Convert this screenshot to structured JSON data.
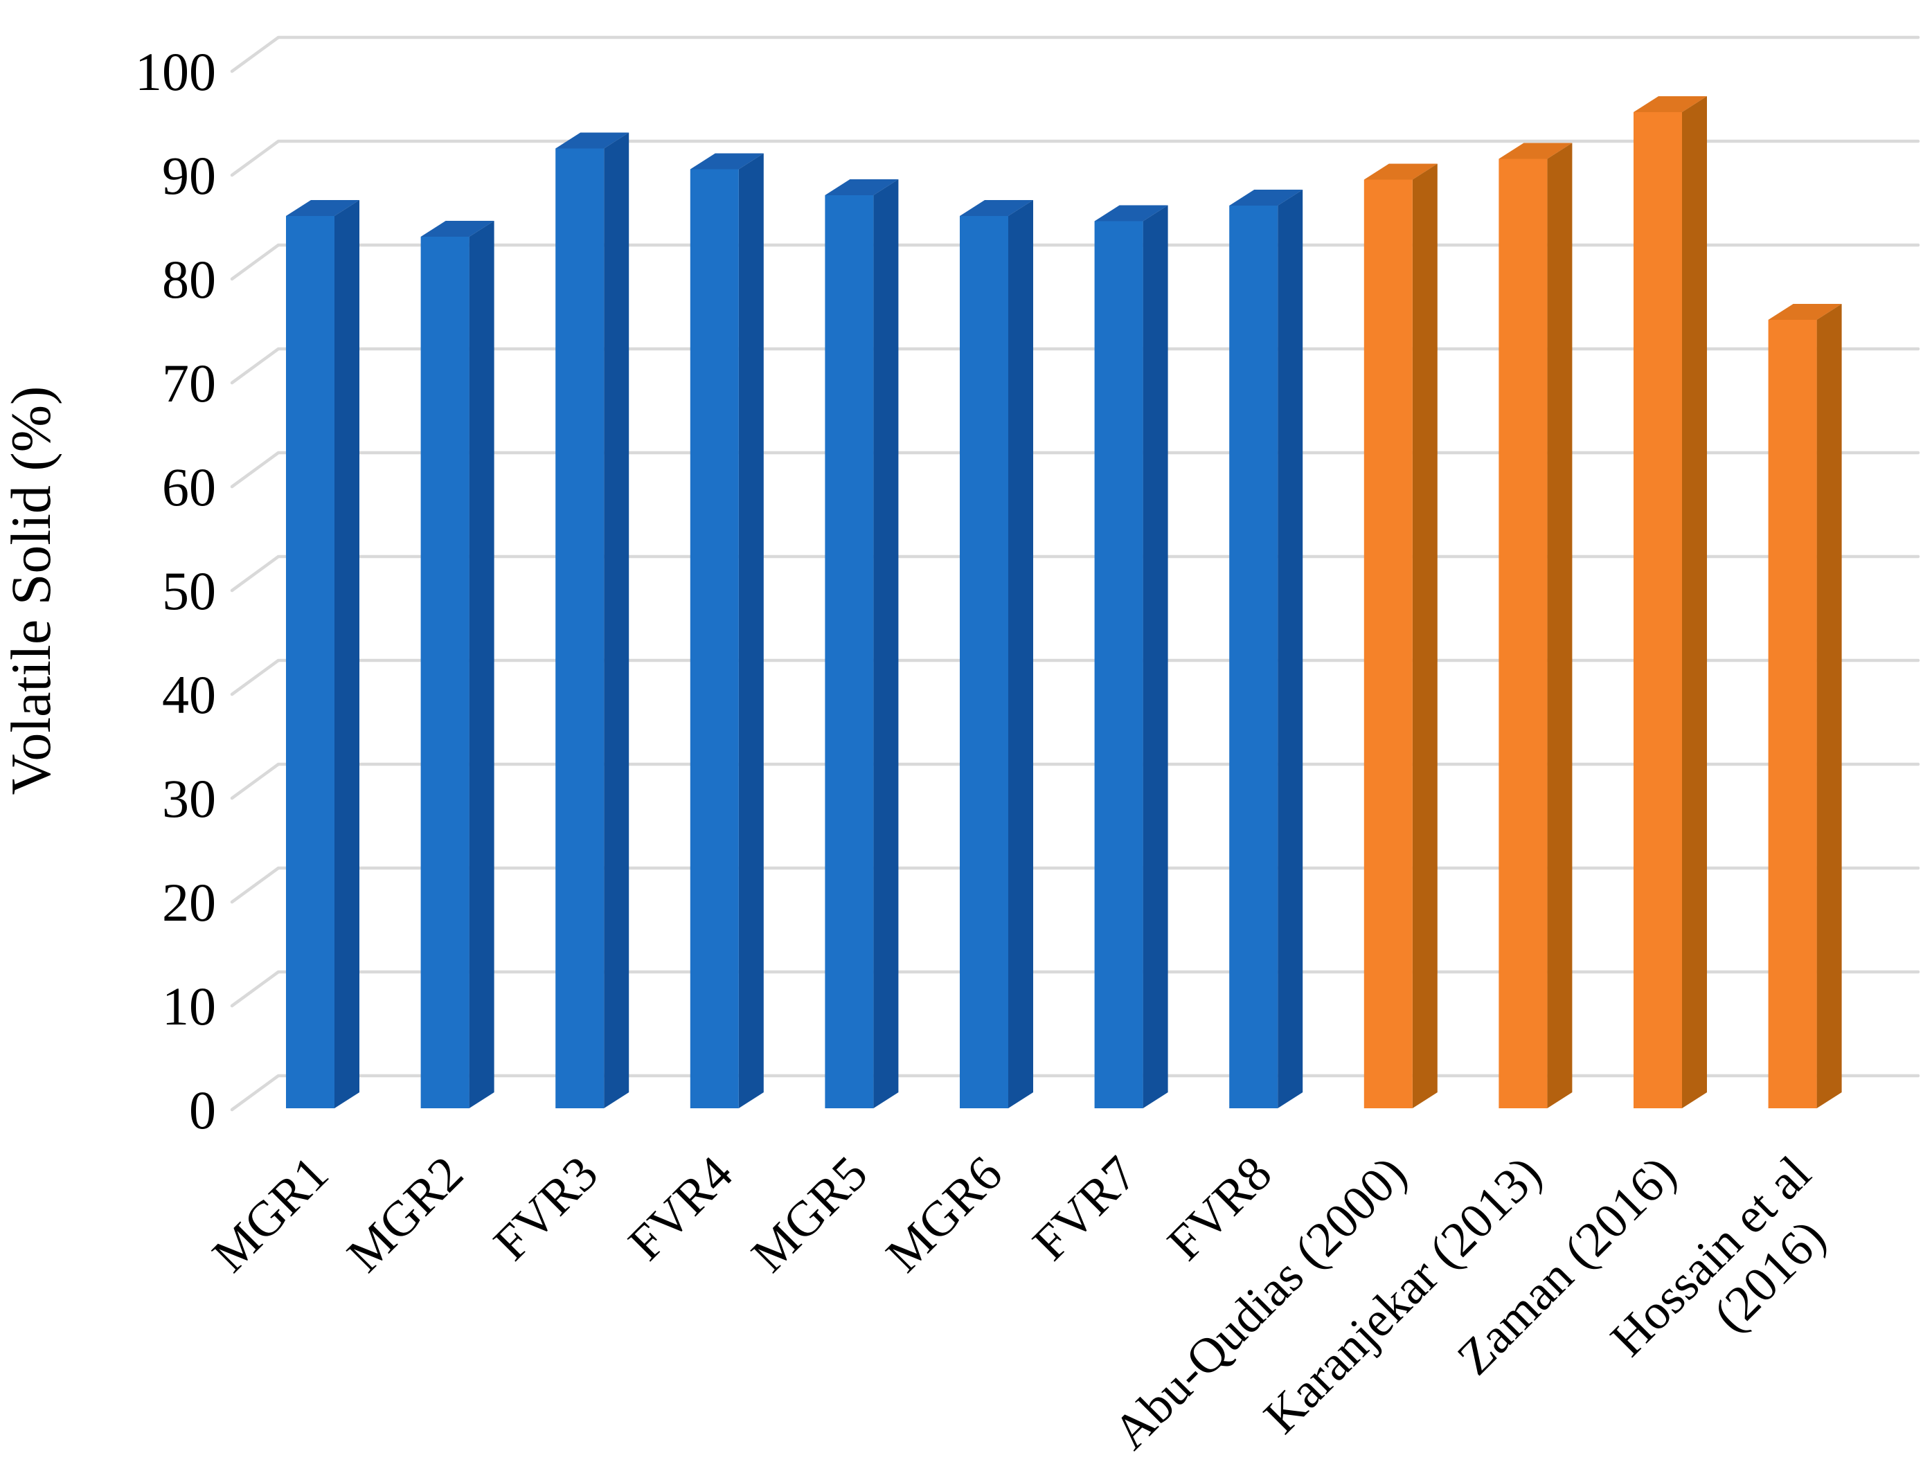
{
  "chart_data": {
    "type": "bar",
    "style": "3d-column",
    "title": "",
    "xlabel": "",
    "ylabel": "Volatile Solid (%)",
    "ylim": [
      0,
      100
    ],
    "ytick_step": 10,
    "yticks": [
      "0",
      "10",
      "20",
      "30",
      "40",
      "50",
      "60",
      "70",
      "80",
      "90",
      "100"
    ],
    "grid": "horizontal",
    "legend": "none",
    "categories": [
      "MGR1",
      "MGR2",
      "FVR3",
      "FVR4",
      "MGR5",
      "MGR6",
      "FVR7",
      "FVR8",
      "Abu-Qudias (2000)",
      "Karanjekar (2013)",
      "Zaman (2016)",
      "Hossain et al (2016)"
    ],
    "label_lines": [
      [
        "MGR1"
      ],
      [
        "MGR2"
      ],
      [
        "FVR3"
      ],
      [
        "FVR4"
      ],
      [
        "MGR5"
      ],
      [
        "MGR6"
      ],
      [
        "FVR7"
      ],
      [
        "FVR8"
      ],
      [
        "Abu-Qudias (2000)"
      ],
      [
        "Karanjekar (2013)"
      ],
      [
        "Zaman (2016)"
      ],
      [
        "Hossain et al",
        "(2016)"
      ]
    ],
    "values": [
      85,
      83,
      91.5,
      89.5,
      87,
      85,
      84.5,
      86,
      88.5,
      90.5,
      95,
      75
    ],
    "bar_groups": [
      "sample",
      "sample",
      "sample",
      "sample",
      "sample",
      "sample",
      "sample",
      "sample",
      "literature",
      "literature",
      "literature",
      "literature"
    ],
    "group_colors": {
      "sample": "#1D71C7",
      "literature": "#F58229"
    }
  },
  "palette": {
    "background": "#FFFFFF",
    "gridline": "#D9D9D9",
    "text": "#000000",
    "bar_faces": {
      "sample": {
        "front": "#1D71C7",
        "top": "#1B5FB0",
        "side": "#11509B"
      },
      "literature": {
        "front": "#F58229",
        "top": "#E0761F",
        "side": "#B4610F"
      }
    }
  }
}
